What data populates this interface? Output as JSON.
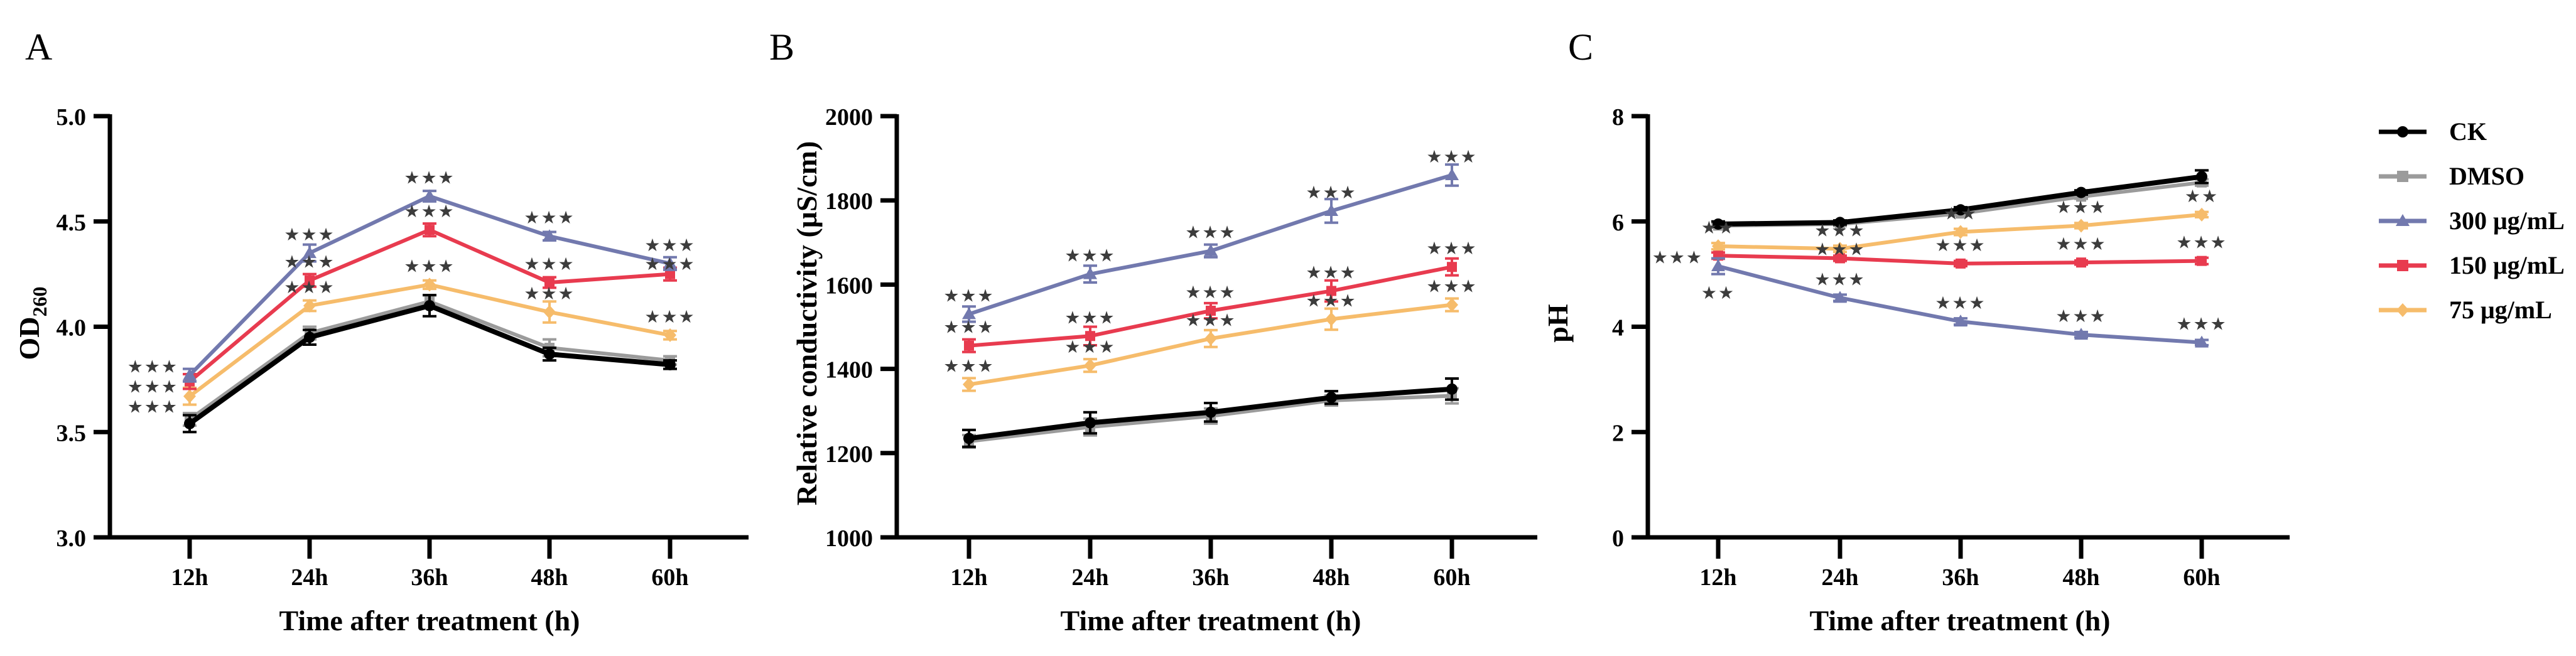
{
  "styles": {
    "star_color": "#3C3C3C",
    "axis_color": "#000000",
    "background": "#ffffff",
    "accent_blue": "#7279AE",
    "accent_red": "#E83B4F",
    "accent_orange": "#F6BC6B",
    "accent_gray": "#9B9B9B",
    "accent_black": "#000000"
  },
  "legend": {
    "items": [
      {
        "label": "CK",
        "color": "#000000",
        "marker": "circle"
      },
      {
        "label": "DMSO",
        "color": "#9B9B9B",
        "marker": "square"
      },
      {
        "label": "300 μg/mL",
        "color": "#7279AE",
        "marker": "triangle"
      },
      {
        "label": "150 μg/mL",
        "color": "#E83B4F",
        "marker": "square"
      },
      {
        "label": "75 μg/mL",
        "color": "#F6BC6B",
        "marker": "diamond"
      }
    ]
  },
  "chart_data": [
    {
      "type": "line",
      "panel_label": "A",
      "ylabel": "OD",
      "ylabel_sub": "260",
      "xlabel": "Time after treatment (h)",
      "categories": [
        "12h",
        "24h",
        "36h",
        "48h",
        "60h"
      ],
      "ylim": [
        3.0,
        5.0
      ],
      "ytick_values": [
        5.0,
        4.5,
        4.0,
        3.5,
        3.0
      ],
      "ytick_labels": [
        "5.0",
        "4.5",
        "4.0",
        "3.5",
        "3.0"
      ],
      "grid": false,
      "series": [
        {
          "name": "CK",
          "color": "#000000",
          "marker": "circle",
          "values": [
            3.54,
            3.95,
            4.1,
            3.87,
            3.82
          ],
          "err": [
            0.04,
            0.035,
            0.05,
            0.03,
            0.02
          ],
          "sig": [
            "",
            "",
            "",
            "",
            ""
          ]
        },
        {
          "name": "DMSO",
          "color": "#9B9B9B",
          "marker": "square",
          "values": [
            3.56,
            3.97,
            4.12,
            3.9,
            3.84
          ],
          "err": [
            0.03,
            0.03,
            0.03,
            0.04,
            0.02
          ],
          "sig": [
            "",
            "",
            "",
            "",
            ""
          ]
        },
        {
          "name": "300 μg/mL",
          "color": "#7279AE",
          "marker": "triangle",
          "values": [
            3.77,
            4.35,
            4.62,
            4.43,
            4.3
          ],
          "err": [
            0.03,
            0.04,
            0.025,
            0.02,
            0.03
          ],
          "sig": [
            "***",
            "***",
            "***",
            "***",
            "***"
          ],
          "sig_pos": [
            "left",
            "above",
            "above",
            "above",
            "above"
          ]
        },
        {
          "name": "150 μg/mL",
          "color": "#E83B4F",
          "marker": "square",
          "values": [
            3.74,
            4.22,
            4.46,
            4.21,
            4.25
          ],
          "err": [
            0.035,
            0.03,
            0.03,
            0.025,
            0.03
          ],
          "sig": [
            "***",
            "***",
            "***",
            "***",
            "***"
          ],
          "sig_pos": [
            "left",
            "above",
            "above",
            "above",
            "above"
          ]
        },
        {
          "name": "75 μg/mL",
          "color": "#F6BC6B",
          "marker": "diamond",
          "values": [
            3.67,
            4.1,
            4.2,
            4.07,
            3.96
          ],
          "err": [
            0.04,
            0.025,
            0.02,
            0.05,
            0.02
          ],
          "sig": [
            "***",
            "***",
            "***",
            "***",
            "***"
          ],
          "sig_pos": [
            "left",
            "above",
            "above",
            "above",
            "above"
          ]
        }
      ]
    },
    {
      "type": "line",
      "panel_label": "B",
      "ylabel": "Relative conductivity (μS/cm)",
      "ylabel_sub": "",
      "xlabel": "Time after treatment (h)",
      "categories": [
        "12h",
        "24h",
        "36h",
        "48h",
        "60h"
      ],
      "ylim": [
        1000,
        2000
      ],
      "ytick_values": [
        2000,
        1800,
        1600,
        1400,
        1200,
        1000
      ],
      "ytick_labels": [
        "2000",
        "1800",
        "1600",
        "1400",
        "1200",
        "1000"
      ],
      "grid": false,
      "series": [
        {
          "name": "CK",
          "color": "#000000",
          "marker": "circle",
          "values": [
            1235,
            1272,
            1297,
            1332,
            1352
          ],
          "err": [
            20,
            25,
            22,
            15,
            25
          ],
          "sig": [
            "",
            "",
            "",
            "",
            ""
          ]
        },
        {
          "name": "DMSO",
          "color": "#9B9B9B",
          "marker": "square",
          "values": [
            1228,
            1262,
            1288,
            1325,
            1336
          ],
          "err": [
            15,
            20,
            18,
            12,
            18
          ],
          "sig": [
            "",
            "",
            "",
            "",
            ""
          ]
        },
        {
          "name": "300 μg/mL",
          "color": "#7279AE",
          "marker": "triangle",
          "values": [
            1530,
            1625,
            1680,
            1775,
            1860
          ],
          "err": [
            18,
            20,
            15,
            28,
            25
          ],
          "sig": [
            "***",
            "***",
            "***",
            "***",
            "***"
          ]
        },
        {
          "name": "150 μg/mL",
          "color": "#E83B4F",
          "marker": "square",
          "values": [
            1455,
            1478,
            1538,
            1585,
            1642
          ],
          "err": [
            15,
            22,
            18,
            25,
            20
          ],
          "sig": [
            "***",
            "***",
            "***",
            "***",
            "***"
          ]
        },
        {
          "name": "75 μg/mL",
          "color": "#F6BC6B",
          "marker": "diamond",
          "values": [
            1363,
            1408,
            1472,
            1518,
            1552
          ],
          "err": [
            15,
            15,
            20,
            25,
            15
          ],
          "sig": [
            "***",
            "***",
            "***",
            "***",
            "***"
          ]
        }
      ]
    },
    {
      "type": "line",
      "panel_label": "C",
      "ylabel": "pH",
      "ylabel_sub": "",
      "xlabel": "Time after treatment (h)",
      "categories": [
        "12h",
        "24h",
        "36h",
        "48h",
        "60h"
      ],
      "ylim": [
        0,
        8
      ],
      "ytick_values": [
        8,
        6,
        4,
        2,
        0
      ],
      "ytick_labels": [
        "8",
        "6",
        "4",
        "2",
        "0"
      ],
      "grid": false,
      "series": [
        {
          "name": "CK",
          "color": "#000000",
          "marker": "circle",
          "values": [
            5.95,
            5.98,
            6.22,
            6.55,
            6.85
          ],
          "err": [
            0.05,
            0.04,
            0.05,
            0.04,
            0.12
          ],
          "sig": [
            "",
            "",
            "",
            "",
            ""
          ]
        },
        {
          "name": "DMSO",
          "color": "#9B9B9B",
          "marker": "square",
          "values": [
            5.92,
            5.95,
            6.15,
            6.47,
            6.74
          ],
          "err": [
            0.04,
            0.04,
            0.04,
            0.04,
            0.06
          ],
          "sig": [
            "",
            "",
            "",
            "",
            ""
          ]
        },
        {
          "name": "300 μg/mL",
          "color": "#7279AE",
          "marker": "triangle",
          "values": [
            5.15,
            4.55,
            4.1,
            3.85,
            3.7
          ],
          "err": [
            0.15,
            0.06,
            0.06,
            0.05,
            0.05
          ],
          "sig": [
            "**",
            "***",
            "***",
            "***",
            "***"
          ],
          "sig_pos": [
            "below",
            "above",
            "above",
            "above",
            "above"
          ]
        },
        {
          "name": "150 μg/mL",
          "color": "#E83B4F",
          "marker": "square",
          "values": [
            5.35,
            5.3,
            5.2,
            5.22,
            5.25
          ],
          "err": [
            0.06,
            0.05,
            0.05,
            0.04,
            0.06
          ],
          "sig": [
            "***",
            "***",
            "***",
            "***",
            "***"
          ],
          "sig_pos": [
            "left",
            "above",
            "above",
            "above",
            "above"
          ]
        },
        {
          "name": "75 μg/mL",
          "color": "#F6BC6B",
          "marker": "diamond",
          "values": [
            5.53,
            5.48,
            5.8,
            5.92,
            6.13
          ],
          "err": [
            0.06,
            0.06,
            0.06,
            0.05,
            0.05
          ],
          "sig": [
            "**",
            "***",
            "**",
            "***",
            "**"
          ],
          "sig_pos": [
            "above",
            "above",
            "above",
            "above",
            "above"
          ]
        }
      ]
    }
  ]
}
